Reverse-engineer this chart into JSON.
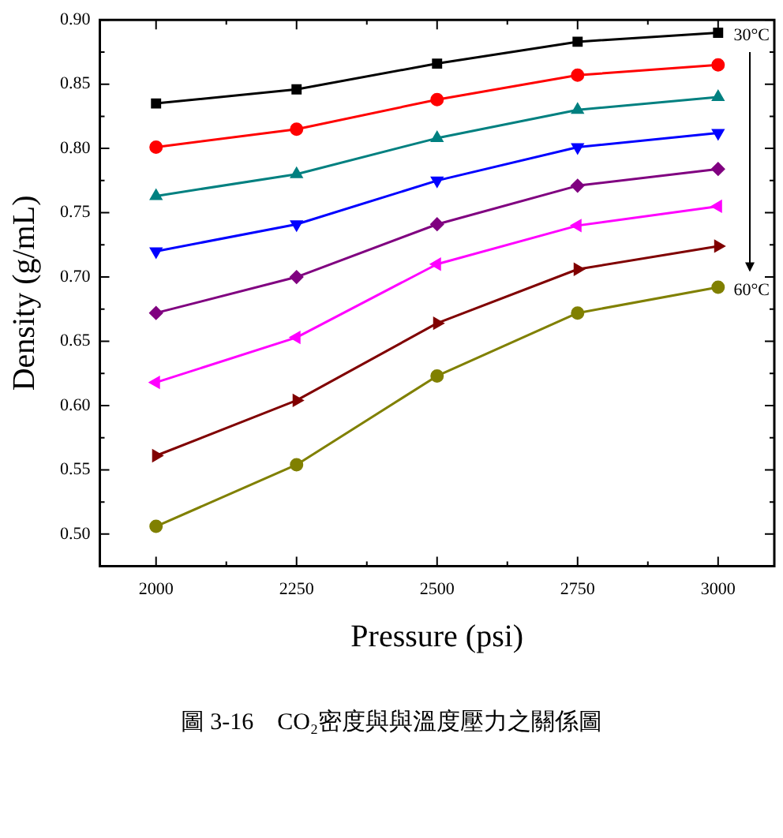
{
  "chart_data": {
    "type": "line",
    "xlabel": "Pressure (psi)",
    "ylabel": "Density (g/mL)",
    "x": [
      2000,
      2250,
      2500,
      2750,
      3000
    ],
    "xlim": [
      1900,
      3100
    ],
    "xticks": [
      2000,
      {
        "value": 2125,
        "label": null
      },
      2250,
      {
        "value": 2375,
        "label": null
      },
      2500,
      {
        "value": 2625,
        "label": null
      },
      2750,
      {
        "value": 2875,
        "label": null
      },
      3000
    ],
    "ylim": [
      0.475,
      0.9
    ],
    "yticks": [
      {
        "value": 0.5,
        "label": "0.50"
      },
      {
        "value": 0.525,
        "label": null
      },
      {
        "value": 0.55,
        "label": "0.55"
      },
      {
        "value": 0.575,
        "label": null
      },
      {
        "value": 0.6,
        "label": "0.60"
      },
      {
        "value": 0.625,
        "label": null
      },
      {
        "value": 0.65,
        "label": "0.65"
      },
      {
        "value": 0.675,
        "label": null
      },
      {
        "value": 0.7,
        "label": "0.70"
      },
      {
        "value": 0.725,
        "label": null
      },
      {
        "value": 0.75,
        "label": "0.75"
      },
      {
        "value": 0.775,
        "label": null
      },
      {
        "value": 0.8,
        "label": "0.80"
      },
      {
        "value": 0.825,
        "label": null
      },
      {
        "value": 0.85,
        "label": "0.85"
      },
      {
        "value": 0.875,
        "label": null
      },
      {
        "value": 0.9,
        "label": "0.90"
      }
    ],
    "grid": false,
    "legend": false,
    "line_style": "solid",
    "series": [
      {
        "color": "#000000",
        "marker": "square",
        "values": [
          0.835,
          0.846,
          0.866,
          0.883,
          0.89
        ]
      },
      {
        "color": "#ff0000",
        "marker": "circle",
        "values": [
          0.801,
          0.815,
          0.838,
          0.857,
          0.865
        ]
      },
      {
        "color": "#008080",
        "marker": "triangle",
        "values": [
          0.763,
          0.78,
          0.808,
          0.83,
          0.84
        ]
      },
      {
        "color": "#0000ff",
        "marker": "triangle-down",
        "values": [
          0.72,
          0.741,
          0.775,
          0.801,
          0.812
        ]
      },
      {
        "color": "#800080",
        "marker": "diamond",
        "values": [
          0.672,
          0.7,
          0.741,
          0.771,
          0.784
        ]
      },
      {
        "color": "#ff00ff",
        "marker": "triangle-left",
        "values": [
          0.618,
          0.653,
          0.71,
          0.74,
          0.755
        ]
      },
      {
        "color": "#800000",
        "marker": "triangle-right",
        "values": [
          0.561,
          0.604,
          0.664,
          0.706,
          0.724
        ]
      },
      {
        "color": "#808000",
        "marker": "circle",
        "values": [
          0.506,
          0.554,
          0.623,
          0.672,
          0.692
        ]
      }
    ],
    "annotations": [
      "30°C",
      "60°C",
      "圖 3-16　CO₂密度與與溫度壓力之關係圖"
    ]
  }
}
